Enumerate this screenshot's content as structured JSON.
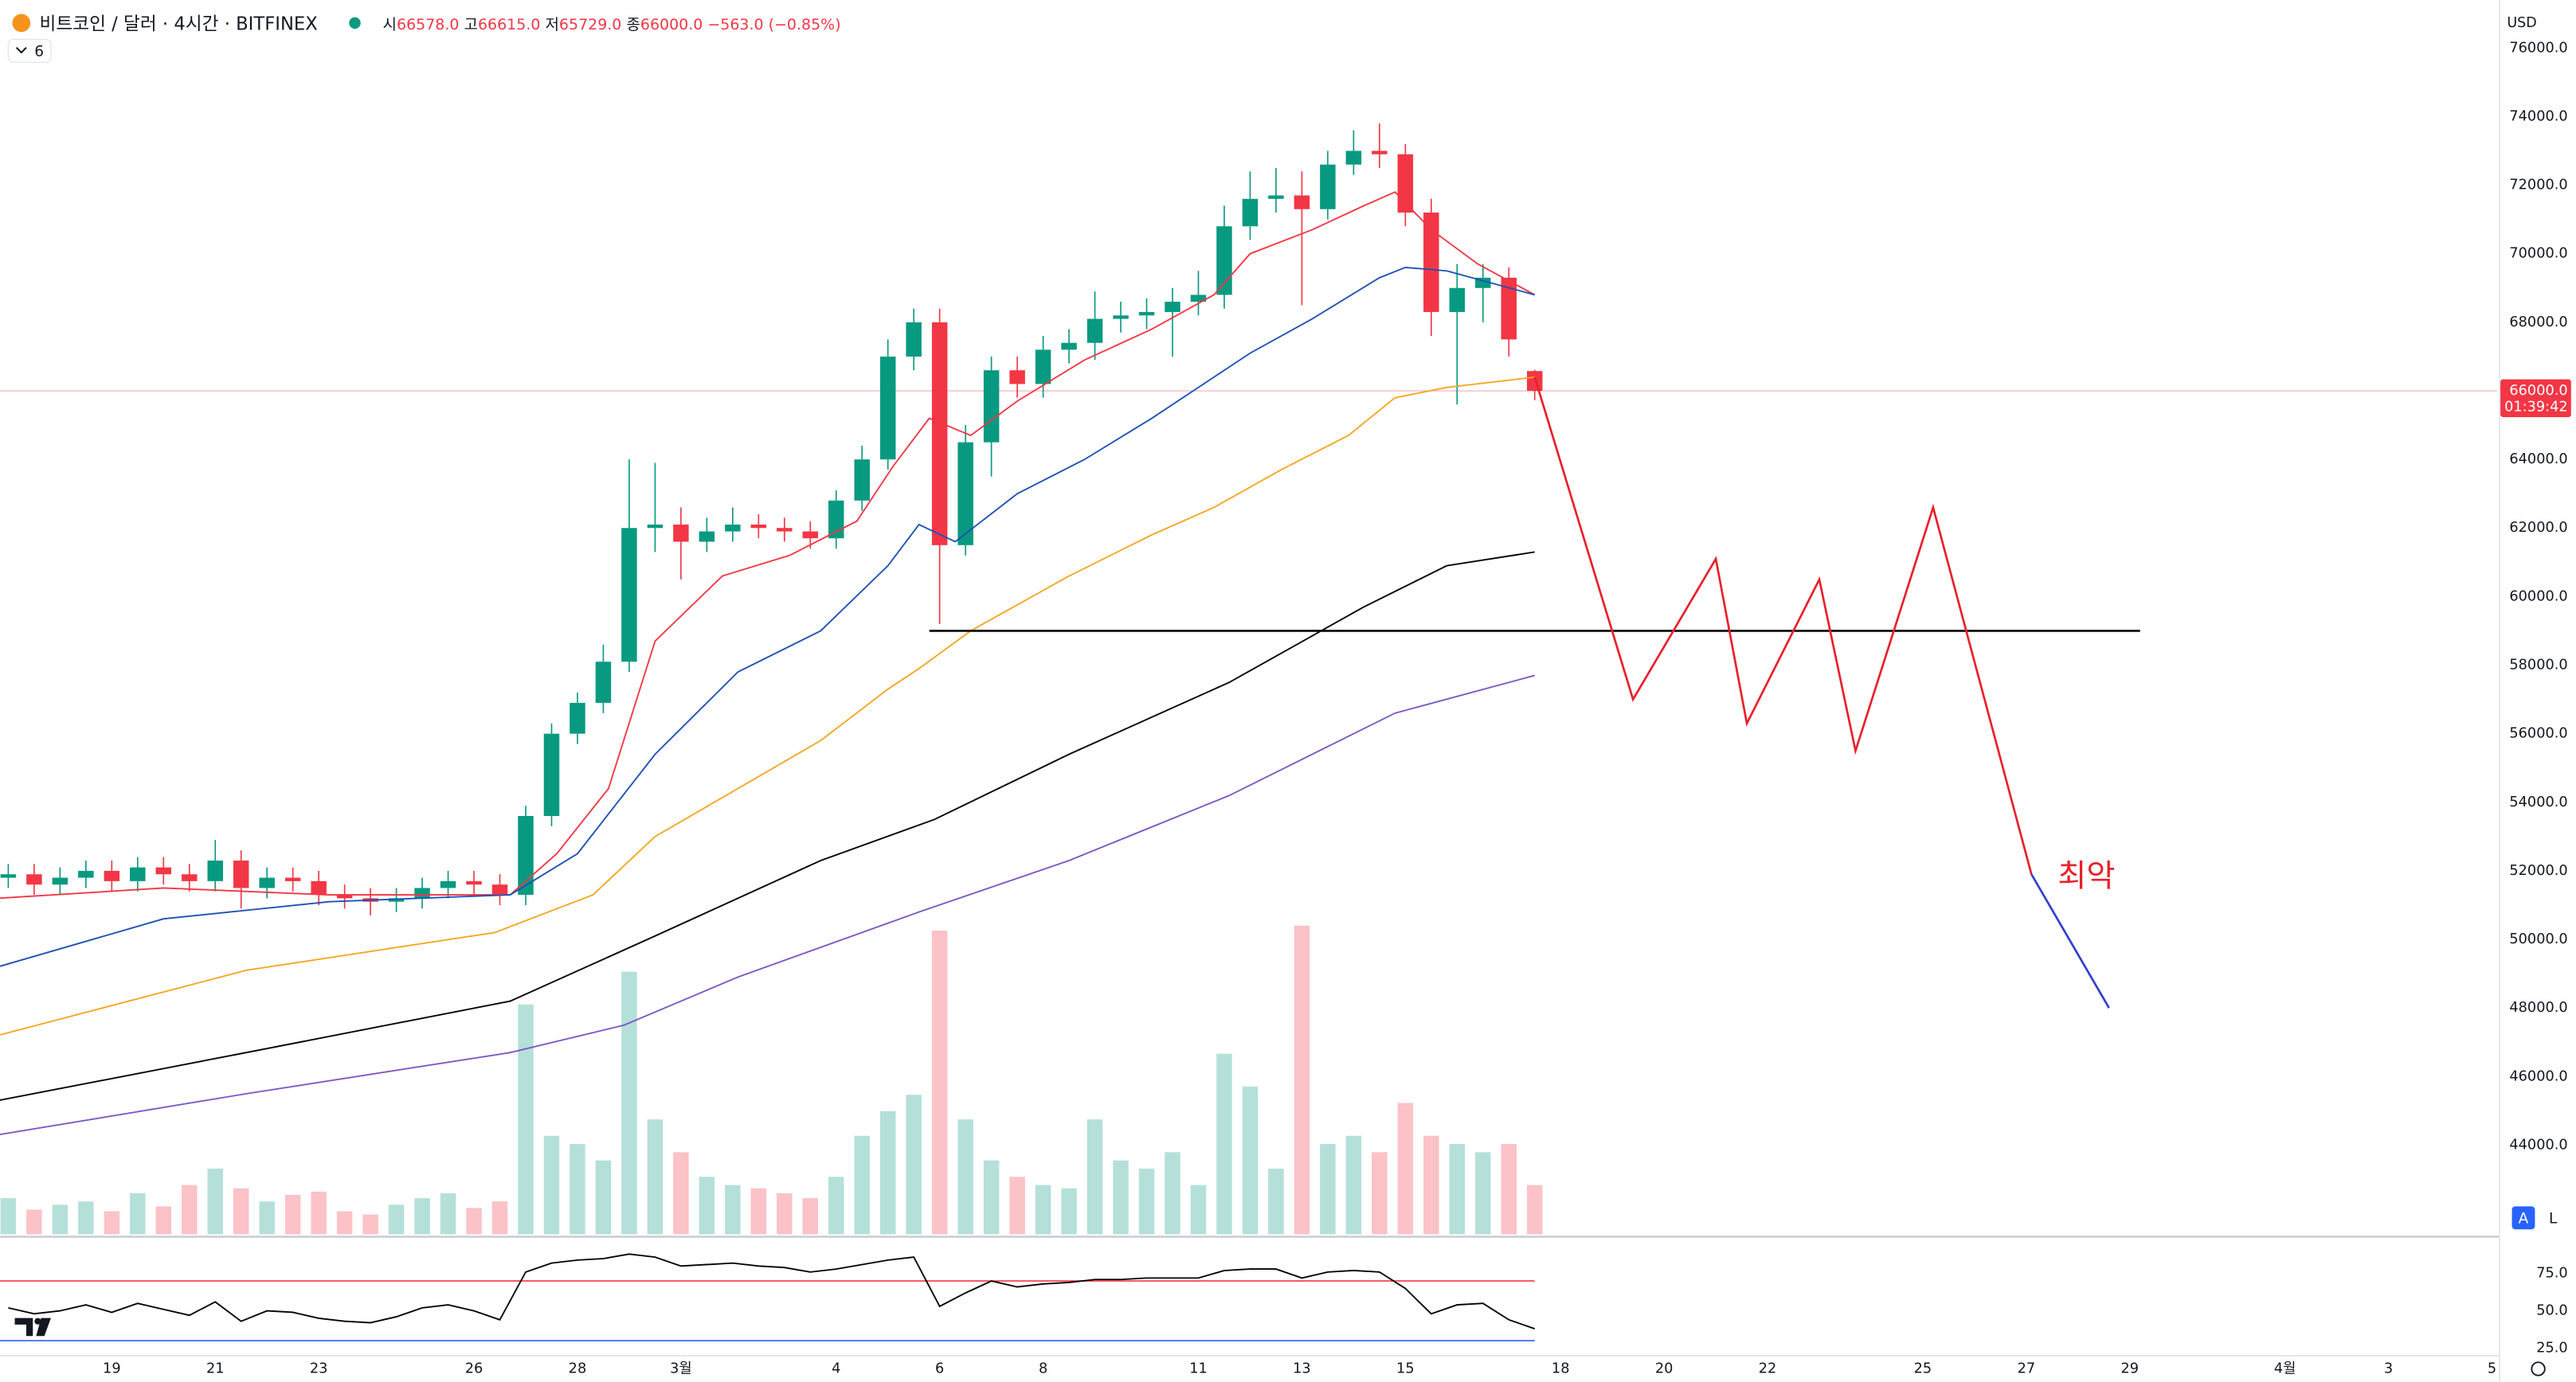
{
  "header": {
    "title": "비트코인 / 달러 · 4시간 · BITFINEX",
    "ohlc": [
      {
        "label": "시",
        "value": "66578.0"
      },
      {
        "label": "고",
        "value": "66615.0"
      },
      {
        "label": "저",
        "value": "65729.0"
      },
      {
        "label": "종",
        "value": "66000.0"
      }
    ],
    "change": "−563.0 (−0.85%)",
    "indicator_count": "6"
  },
  "ui": {
    "currency": "USD",
    "auto_button": "A",
    "log_button": "L"
  },
  "chart_data": {
    "type": "candlestick",
    "up_color": "#089981",
    "down_color": "#f23645",
    "xlim": [
      -2.16,
      46.1
    ],
    "ylim": [
      41400,
      77400
    ],
    "xticks": [
      {
        "value": 0,
        "label": "19"
      },
      {
        "value": 2,
        "label": "21"
      },
      {
        "value": 4,
        "label": "23"
      },
      {
        "value": 7,
        "label": "26"
      },
      {
        "value": 9,
        "label": "28"
      },
      {
        "value": 11,
        "label": "3월"
      },
      {
        "value": 14,
        "label": "4"
      },
      {
        "value": 16,
        "label": "6"
      },
      {
        "value": 18,
        "label": "8"
      },
      {
        "value": 21,
        "label": "11"
      },
      {
        "value": 23,
        "label": "13"
      },
      {
        "value": 25,
        "label": "15"
      },
      {
        "value": 28,
        "label": "18"
      },
      {
        "value": 30,
        "label": "20"
      },
      {
        "value": 32,
        "label": "22"
      },
      {
        "value": 35,
        "label": "25"
      },
      {
        "value": 37,
        "label": "27"
      },
      {
        "value": 39,
        "label": "29"
      },
      {
        "value": 42,
        "label": "4월"
      },
      {
        "value": 44,
        "label": "3"
      },
      {
        "value": 46,
        "label": "5"
      }
    ],
    "yticks": [
      {
        "value": 44000,
        "label": "44000.0"
      },
      {
        "value": 46000,
        "label": "46000.0"
      },
      {
        "value": 48000,
        "label": "48000.0"
      },
      {
        "value": 50000,
        "label": "50000.0"
      },
      {
        "value": 52000,
        "label": "52000.0"
      },
      {
        "value": 54000,
        "label": "54000.0"
      },
      {
        "value": 56000,
        "label": "56000.0"
      },
      {
        "value": 58000,
        "label": "58000.0"
      },
      {
        "value": 60000,
        "label": "60000.0"
      },
      {
        "value": 62000,
        "label": "62000.0"
      },
      {
        "value": 64000,
        "label": "64000.0"
      },
      {
        "value": 66000,
        "label": "66000.0"
      },
      {
        "value": 68000,
        "label": "68000.0"
      },
      {
        "value": 70000,
        "label": "70000.0"
      },
      {
        "value": 72000,
        "label": "72000.0"
      },
      {
        "value": 74000,
        "label": "74000.0"
      },
      {
        "value": 76000,
        "label": "76000.0"
      }
    ],
    "x": [
      -2,
      -1.5,
      -1,
      -0.5,
      0,
      0.5,
      1,
      1.5,
      2,
      2.5,
      3,
      3.5,
      4,
      4.5,
      5,
      5.5,
      6,
      6.5,
      7,
      7.5,
      8,
      8.5,
      9,
      9.5,
      10,
      10.5,
      11,
      11.5,
      12,
      12.5,
      13,
      13.5,
      14,
      14.5,
      15,
      15.5,
      16,
      16.5,
      17,
      17.5,
      18,
      18.5,
      19,
      19.5,
      20,
      20.5,
      21,
      21.5,
      22,
      22.5,
      23,
      23.5,
      24,
      24.5,
      25,
      25.5,
      26,
      26.5,
      27,
      27.5
    ],
    "open": [
      51800,
      51900,
      51600,
      51800,
      52000,
      51700,
      52100,
      51900,
      51700,
      52300,
      51500,
      51800,
      51700,
      51300,
      51200,
      51100,
      51200,
      51500,
      51700,
      51600,
      51300,
      53600,
      56000,
      56900,
      58100,
      62000,
      62100,
      61600,
      61900,
      62100,
      62000,
      61900,
      61700,
      62800,
      64000,
      67000,
      68000,
      61500,
      64500,
      66600,
      66200,
      67200,
      67400,
      68100,
      68200,
      68300,
      68600,
      68800,
      70800,
      71600,
      71700,
      71300,
      72600,
      73000,
      72900,
      71200,
      68300,
      69000,
      69300,
      66578
    ],
    "high": [
      52200,
      52200,
      52100,
      52300,
      52300,
      52400,
      52400,
      52200,
      52900,
      52600,
      52100,
      52100,
      52000,
      51600,
      51500,
      51500,
      51800,
      52000,
      52000,
      51900,
      53900,
      56300,
      57200,
      58600,
      64000,
      63900,
      62600,
      62300,
      62600,
      62400,
      62300,
      62200,
      63100,
      64400,
      67500,
      68400,
      68400,
      65000,
      67000,
      67000,
      67600,
      67800,
      68900,
      68600,
      68700,
      69000,
      69500,
      71400,
      72400,
      72500,
      72400,
      73000,
      73600,
      73800,
      73200,
      71600,
      69700,
      69700,
      69600,
      66615
    ],
    "low": [
      51500,
      51300,
      51300,
      51500,
      51400,
      51400,
      51600,
      51400,
      51400,
      50900,
      51200,
      51400,
      51000,
      50900,
      50700,
      50800,
      50900,
      51200,
      51300,
      51000,
      51000,
      53300,
      55700,
      56600,
      57800,
      61300,
      60500,
      61300,
      61600,
      61700,
      61600,
      61400,
      61400,
      62500,
      63700,
      66600,
      59200,
      61200,
      63500,
      65800,
      65800,
      66800,
      66900,
      67700,
      67800,
      67000,
      68200,
      68400,
      70400,
      71200,
      68500,
      71000,
      72300,
      72500,
      70800,
      67600,
      65600,
      68000,
      67000,
      65729
    ],
    "close": [
      51900,
      51600,
      51800,
      52000,
      51700,
      52100,
      51900,
      51700,
      52300,
      51500,
      51800,
      51700,
      51300,
      51200,
      51100,
      51200,
      51500,
      51700,
      51600,
      51300,
      53600,
      56000,
      56900,
      58100,
      62000,
      62100,
      61600,
      61900,
      62100,
      62000,
      61900,
      61700,
      62800,
      64000,
      67000,
      68000,
      61500,
      64500,
      66600,
      66200,
      67200,
      67400,
      68100,
      68200,
      68300,
      68600,
      68800,
      70800,
      71600,
      71700,
      71300,
      72600,
      73000,
      72900,
      71200,
      68300,
      69000,
      69300,
      67500,
      66000
    ],
    "volume": [
      22,
      15,
      18,
      20,
      14,
      25,
      17,
      30,
      40,
      28,
      20,
      24,
      26,
      14,
      12,
      18,
      22,
      25,
      16,
      20,
      140,
      60,
      55,
      45,
      160,
      70,
      50,
      35,
      30,
      28,
      25,
      22,
      35,
      60,
      75,
      85,
      185,
      70,
      45,
      35,
      30,
      28,
      70,
      45,
      40,
      50,
      30,
      110,
      90,
      40,
      188,
      55,
      60,
      50,
      80,
      60,
      55,
      50,
      55,
      30
    ],
    "lines": [
      {
        "color": "#f23645",
        "x": [
          -2.2,
          1,
          4.2,
          7.7,
          8.6,
          9.6,
          10.5,
          11.8,
          13.1,
          14.4,
          15.1,
          15.8,
          16.6,
          17.5,
          18.8,
          20.1,
          21.3,
          22,
          23.2,
          24.2,
          24.8,
          25.5,
          26.4,
          27.5
        ],
        "values": [
          51200,
          51500,
          51300,
          51300,
          52500,
          54400,
          58700,
          60600,
          61200,
          62200,
          63800,
          65200,
          64700,
          65700,
          66900,
          67800,
          68800,
          70000,
          70700,
          71400,
          71800,
          70700,
          69700,
          68800
        ]
      },
      {
        "color": "#1e50b4",
        "x": [
          -2.2,
          1,
          4.2,
          7.7,
          9,
          10.5,
          12.1,
          13.7,
          15,
          15.6,
          16.3,
          17.5,
          18.8,
          20.1,
          21.3,
          22,
          23.2,
          24.5,
          25,
          25.8,
          27.5
        ],
        "values": [
          49200,
          50600,
          51100,
          51300,
          52500,
          55400,
          57800,
          59000,
          60900,
          62100,
          61600,
          63000,
          64000,
          65200,
          66400,
          67100,
          68100,
          69300,
          69600,
          69500,
          68800
        ]
      },
      {
        "color": "#f5a623",
        "x": [
          -2.2,
          2.6,
          7.4,
          9.3,
          10.5,
          12.1,
          13.7,
          15,
          15.6,
          16.6,
          18.5,
          20.1,
          21.3,
          22.6,
          23.9,
          24.8,
          25.8,
          27.5
        ],
        "values": [
          47200,
          49100,
          50200,
          51300,
          53000,
          54400,
          55800,
          57300,
          57900,
          59000,
          60600,
          61800,
          62600,
          63700,
          64700,
          65800,
          66100,
          66400
        ]
      },
      {
        "color": "#000000",
        "x": [
          -2.2,
          2.6,
          7.7,
          10.5,
          13.7,
          15.9,
          18.5,
          21.6,
          24.2,
          25.8,
          27.5
        ],
        "values": [
          45300,
          46700,
          48200,
          50100,
          52300,
          53500,
          55400,
          57500,
          59700,
          60900,
          61300
        ]
      },
      {
        "color": "#7e57c2",
        "x": [
          -2.2,
          2.6,
          7.7,
          9.9,
          12.1,
          15.6,
          18.5,
          21.6,
          24.8,
          27.5
        ],
        "values": [
          44300,
          45500,
          46700,
          47500,
          48900,
          50800,
          52300,
          54200,
          56600,
          57700
        ]
      },
      {
        "color": "#000000",
        "x": [
          15.8,
          39.2
        ],
        "values": [
          59000,
          59000
        ]
      },
      {
        "color": "#e8202a",
        "x": [
          27.5,
          29.4,
          31,
          31.6,
          33,
          33.7,
          35.2,
          37.1
        ],
        "values": [
          66400,
          57000,
          61100,
          56300,
          60500,
          55500,
          62600,
          51900
        ]
      },
      {
        "color": "#2f3fcf",
        "x": [
          37.1,
          38.6
        ],
        "values": [
          51900,
          48000
        ]
      }
    ],
    "annotation": "최악",
    "last_price": {
      "value": 66000,
      "label": "66000.0",
      "countdown": "01:39:42"
    },
    "rsi": {
      "color": "#000000",
      "ylim": [
        21,
        98
      ],
      "yticks": [
        {
          "value": 25,
          "label": "25.0"
        },
        {
          "value": 50,
          "label": "50.0"
        },
        {
          "value": 75,
          "label": "75.0"
        }
      ],
      "bands": [
        70,
        30
      ],
      "band_colors": [
        "#f23645",
        "#2962ff"
      ],
      "values": [
        52,
        48,
        50,
        54,
        49,
        55,
        51,
        47,
        56,
        43,
        50,
        49,
        45,
        43,
        42,
        46,
        52,
        54,
        50,
        44,
        76,
        82,
        84,
        85,
        88,
        86,
        80,
        81,
        82,
        80,
        79,
        76,
        78,
        81,
        84,
        86,
        53,
        62,
        70,
        66,
        68,
        69,
        71,
        71,
        72,
        72,
        72,
        77,
        78,
        78,
        72,
        76,
        77,
        76,
        65,
        48,
        54,
        55,
        44,
        38
      ]
    }
  }
}
